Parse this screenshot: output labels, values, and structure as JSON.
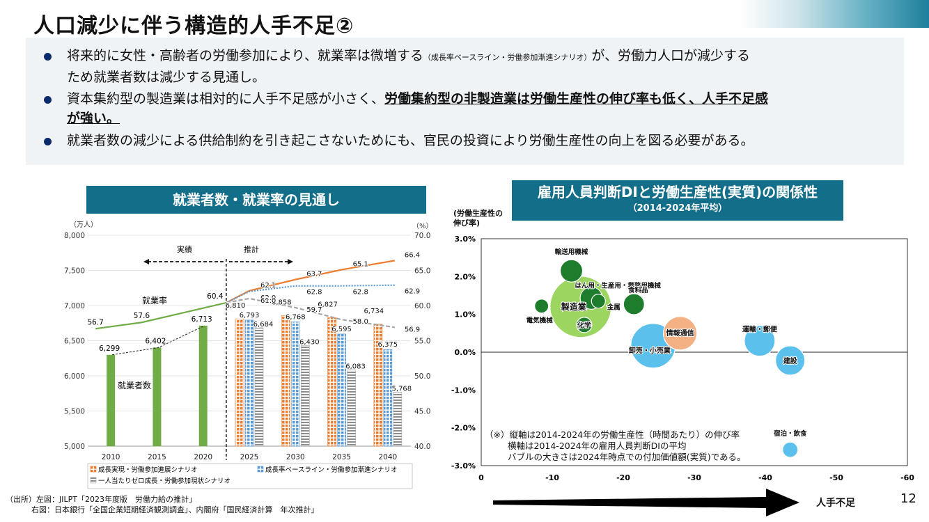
{
  "slide": {
    "title": "人口減少に伴う構造的人手不足②",
    "page_number": "12",
    "bullets": [
      {
        "line1_main": "将来的に女性・高齢者の労働参加により、就業率は微増する",
        "line1_small": "（成長率ベースライン・労働参加漸進シナリオ）",
        "line1_end": "が、労働力人口が減少する",
        "line2": "ため就業者数は減少する見通し。"
      },
      {
        "line1_plain": "資本集約型の製造業は相対的に人手不足感が小さく、",
        "line1_underline": "労働集約型の非製造業は労働生産性の伸び率も低く、人手不足感",
        "line2_underline": "が強い。"
      },
      {
        "text": "就業者数の減少による供給制約を引き起こさないためにも、官民の投資により労働生産性の向上を図る必要がある。"
      }
    ],
    "source_line1": "（出所）左図：JILPT「2023年度版　労働力給の推計」",
    "source_line2": "右図：日本銀行「全国企業短期経済観測調査」、内閣府「国民経済計算　年次推計」",
    "arrow_label": "人手不足"
  },
  "chart_data": [
    {
      "type": "bar",
      "title": "就業者数・就業率の見通し",
      "y_left_unit": "（万人）",
      "y_right_unit": "（%）",
      "y_left_ticks": [
        "8,000",
        "7,500",
        "7,000",
        "6,500",
        "6,000",
        "5,500",
        "5,000"
      ],
      "y_right_ticks": [
        "70.0",
        "65.0",
        "60.0",
        "55.0",
        "50.0",
        "45.0",
        "40.0"
      ],
      "ylim_left": [
        5000,
        8000
      ],
      "ylim_right": [
        40,
        70
      ],
      "categories": [
        "2010",
        "2015",
        "2020",
        "2025",
        "2030",
        "2035",
        "2040"
      ],
      "label_actual": "実績",
      "label_forecast": "推計",
      "label_employed": "就業者数",
      "label_rate": "就業率",
      "actual_bars": {
        "values": [
          6299,
          6402,
          6713
        ],
        "labels": [
          "6,299",
          "6,402",
          "6,713"
        ],
        "color": "#70ad47"
      },
      "series": [
        {
          "name": "成長実現・労働参加進展シナリオ",
          "bar_values": [
            6810,
            6858,
            6827,
            6734
          ],
          "bar_labels": [
            "6,810",
            "6,858",
            "6,827",
            "6,734"
          ],
          "rate_values": [
            62.1,
            63.7,
            65.1,
            66.4
          ],
          "rate_labels": [
            "62.1",
            "63.7",
            "65.1",
            "66.4"
          ],
          "color": "#ed7d31"
        },
        {
          "name": "成長率ベースライン・労働参加漸進シナリオ",
          "bar_values": [
            6793,
            6768,
            6595,
            6375
          ],
          "bar_labels": [
            "6,793",
            "6,768",
            "6,595",
            "6,375"
          ],
          "rate_values": [
            62.0,
            62.8,
            62.8,
            62.9
          ],
          "rate_labels": [
            "62.0",
            "62.8",
            "62.8",
            "62.9"
          ],
          "color": "#5b9bd5"
        },
        {
          "name": "一人当たりゼロ成長・労働参加現状シナリオ",
          "bar_values": [
            6684,
            6430,
            6083,
            5768
          ],
          "bar_labels": [
            "6,684",
            "6,430",
            "6,083",
            "5,768"
          ],
          "rate_values": [
            61.0,
            59.7,
            58.0,
            56.9
          ],
          "rate_labels": [
            "61.0",
            "59.7",
            "58.0",
            "56.9"
          ],
          "color": "#a6a6a6"
        }
      ],
      "actual_rate": {
        "values": [
          56.7,
          57.6,
          60.4
        ],
        "labels": [
          "56.7",
          "57.6",
          "60.4"
        ],
        "color": "#70ad47"
      }
    },
    {
      "type": "scatter",
      "title": "雇用人員判断DIと労働生産性(実質)の関係性",
      "subtitle": "（2014-2024年平均）",
      "ylabel": "(労働生産性の\n伸び率)",
      "y_ticks": [
        "3.0%",
        "2.0%",
        "1.0%",
        "0.0%",
        "-1.0%",
        "-2.0%",
        "-3.0%"
      ],
      "x_ticks": [
        "0",
        "-10",
        "-20",
        "-30",
        "-40",
        "-50",
        "-60"
      ],
      "xlim": [
        0,
        -60
      ],
      "ylim": [
        -3.0,
        3.0
      ],
      "points": [
        {
          "name": "製造業",
          "x": -14,
          "y": 1.2,
          "size": 44,
          "color": "#92d050"
        },
        {
          "name": "輸送用機械",
          "x": -12.7,
          "y": 2.15,
          "size": 16,
          "color": "#1e7d2c"
        },
        {
          "name": "はん用・生産用・業務用機械",
          "x": -15.5,
          "y": 1.43,
          "size": 16,
          "color": "#1e7d2c"
        },
        {
          "name": "食料品",
          "x": -21.5,
          "y": 1.27,
          "size": 15,
          "color": "#1e7d2c"
        },
        {
          "name": "金属",
          "x": -16.5,
          "y": 1.35,
          "size": 10,
          "color": "#1e7d2c"
        },
        {
          "name": "電気機械",
          "x": -8.5,
          "y": 1.22,
          "size": 10,
          "color": "#1e7d2c"
        },
        {
          "name": "化学",
          "x": -14.5,
          "y": 0.72,
          "size": 11,
          "color": "#1e7d2c"
        },
        {
          "name": "卸売・小売業",
          "x": -24.2,
          "y": 0.17,
          "size": 32,
          "color": "#5bc0eb"
        },
        {
          "name": "情報通信",
          "x": -28,
          "y": 0.5,
          "size": 24,
          "color": "#f4b183"
        },
        {
          "name": "運輸・郵便",
          "x": -39.2,
          "y": 0.3,
          "size": 22,
          "color": "#5bc0eb"
        },
        {
          "name": "建設",
          "x": -43.5,
          "y": -0.22,
          "size": 21,
          "color": "#5bc0eb"
        },
        {
          "name": "宿泊・飲食",
          "x": -43.5,
          "y": -2.58,
          "size": 11,
          "color": "#5bc0eb"
        }
      ],
      "note_line1": "（※）縦軸は2014-2024年の労働生産性（時間あたり）の伸び率",
      "note_line2": "横軸は2014-2024年の雇用人員判断DIの平均",
      "note_line3": "バブルの大きさは2024年時点での付加価値額(実質)である。"
    }
  ]
}
